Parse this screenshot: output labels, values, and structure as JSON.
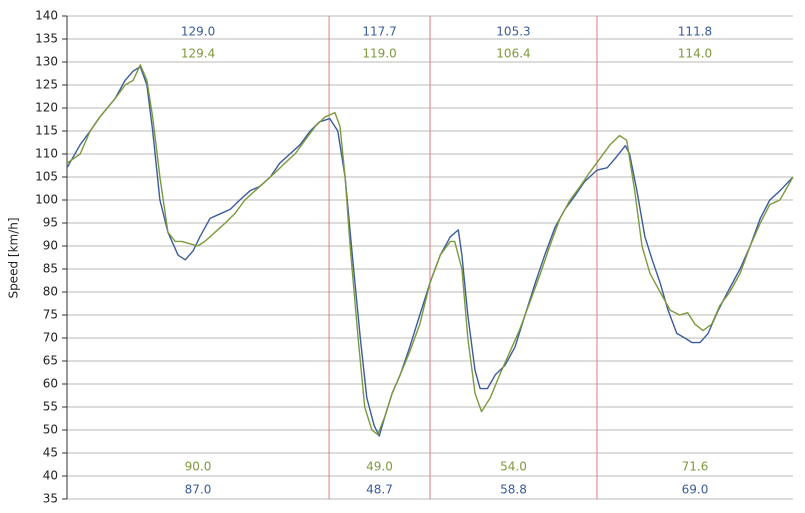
{
  "chart_data": {
    "type": "line",
    "y_label": "Speed [km/h]",
    "ylim": [
      35,
      140
    ],
    "yticks": [
      35,
      40,
      45,
      50,
      55,
      60,
      65,
      70,
      75,
      80,
      85,
      90,
      95,
      100,
      105,
      110,
      115,
      120,
      125,
      130,
      135,
      140
    ],
    "xlim": [
      0,
      100
    ],
    "grid": true,
    "sector_lines": [
      36.1,
      50.0,
      73.0
    ],
    "sector_line_color": "#e07a84",
    "sector_annotations": [
      {
        "top": [
          "129.0",
          "129.4"
        ],
        "bottom": [
          "90.0",
          "87.0"
        ]
      },
      {
        "top": [
          "117.7",
          "119.0"
        ],
        "bottom": [
          "49.0",
          "48.7"
        ]
      },
      {
        "top": [
          "105.3",
          "106.4"
        ],
        "bottom": [
          "54.0",
          "58.8"
        ]
      },
      {
        "top": [
          "111.8",
          "114.0"
        ],
        "bottom": [
          "71.6",
          "69.0"
        ]
      }
    ],
    "series": [
      {
        "color": "#3b5c9c",
        "x": [
          0,
          1.8,
          3.2,
          4.5,
          6.6,
          8.0,
          9.1,
          10.1,
          11.0,
          11.8,
          12.8,
          13.9,
          15.3,
          16.3,
          17.4,
          18.3,
          19.7,
          21.1,
          22.5,
          23.8,
          25.2,
          26.6,
          28.0,
          29.3,
          30.7,
          32.1,
          33.5,
          34.8,
          36.2,
          37.3,
          38.3,
          39.3,
          40.4,
          41.3,
          42.3,
          43.0,
          43.8,
          44.8,
          45.9,
          47.2,
          48.6,
          50.0,
          51.4,
          52.8,
          53.9,
          54.4,
          55.2,
          56.2,
          56.9,
          57.9,
          59.0,
          60.3,
          61.7,
          63.1,
          64.5,
          65.8,
          67.2,
          68.6,
          70.0,
          71.3,
          73.0,
          74.4,
          75.5,
          76.9,
          77.5,
          78.5,
          79.6,
          80.6,
          81.7,
          82.8,
          84.0,
          85.1,
          86.1,
          87.2,
          88.3,
          89.7,
          91.0,
          92.7,
          94.1,
          95.5,
          96.8,
          98.2,
          100
        ],
        "values": [
          107,
          112,
          115,
          118,
          122,
          126,
          128,
          129,
          125,
          115,
          100,
          93,
          88,
          87,
          89,
          92,
          96,
          97,
          98,
          100,
          102,
          103,
          105,
          108,
          110,
          112,
          115,
          117,
          117.7,
          115,
          105,
          88,
          70,
          57,
          51,
          48.7,
          53,
          58,
          62,
          68,
          75,
          82,
          88,
          92,
          93.5,
          88,
          75,
          63,
          59,
          59,
          62,
          64,
          68,
          75,
          82,
          88,
          94,
          98,
          101,
          104,
          106.5,
          107,
          109,
          111.8,
          110,
          102,
          92,
          87,
          82,
          76,
          71,
          70,
          69,
          69,
          71,
          76,
          80,
          85,
          90,
          96,
          100,
          102,
          105
        ]
      },
      {
        "color": "#7c9a3c",
        "x": [
          0,
          1.8,
          3.2,
          4.5,
          6.6,
          8.0,
          9.1,
          10.1,
          11.0,
          11.8,
          12.8,
          13.9,
          14.9,
          15.8,
          16.9,
          18.0,
          19.0,
          20.4,
          21.8,
          23.1,
          24.5,
          25.9,
          27.3,
          28.7,
          30.0,
          31.4,
          32.8,
          34.2,
          35.5,
          36.9,
          37.6,
          38.3,
          39.0,
          40.1,
          41.0,
          42.0,
          42.8,
          43.8,
          44.8,
          45.9,
          47.2,
          48.6,
          50.0,
          51.4,
          52.8,
          53.4,
          54.4,
          55.2,
          56.2,
          57.1,
          58.3,
          59.6,
          61.0,
          62.4,
          63.8,
          65.2,
          66.5,
          67.9,
          69.3,
          70.7,
          72.0,
          73.4,
          74.8,
          76.1,
          77.1,
          78.2,
          79.2,
          80.3,
          81.7,
          83.1,
          84.4,
          85.5,
          86.5,
          87.6,
          88.8,
          89.9,
          91.3,
          92.7,
          94.1,
          95.5,
          96.8,
          98.2,
          100
        ],
        "values": [
          108,
          110,
          115,
          118,
          122,
          125,
          126,
          129.4,
          126,
          118,
          105,
          93,
          91,
          91,
          90.5,
          90,
          91,
          93,
          95,
          97,
          100,
          102,
          104,
          106,
          108,
          110,
          113,
          116,
          118,
          119,
          116,
          105,
          90,
          70,
          55,
          50,
          49,
          53,
          58,
          62,
          67,
          73,
          82,
          88,
          91,
          91,
          85,
          70,
          58,
          54,
          57,
          62,
          67,
          72,
          78,
          84,
          90,
          96,
          100,
          103,
          106,
          109,
          112,
          114,
          113,
          102,
          90,
          84,
          80,
          76,
          75,
          75.5,
          73,
          71.6,
          73,
          77,
          80,
          84,
          90,
          95,
          99,
          100,
          105
        ]
      }
    ]
  }
}
